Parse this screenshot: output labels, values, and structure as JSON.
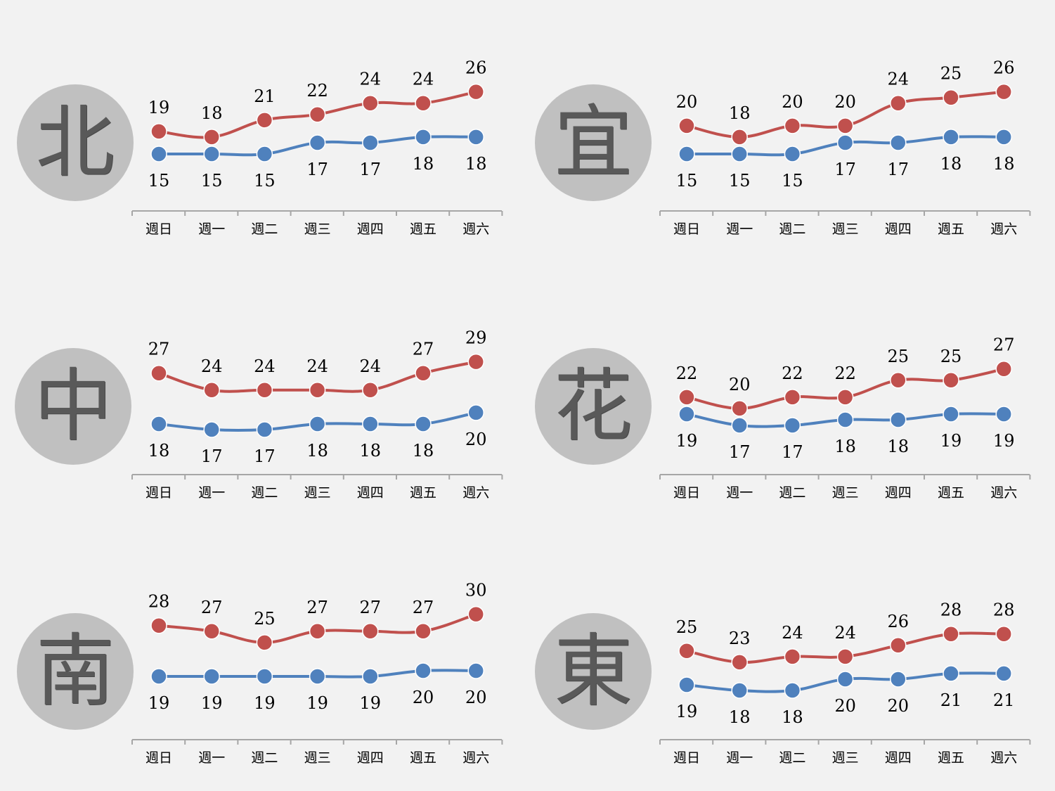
{
  "chart_data": [
    {
      "type": "line",
      "panel": "北",
      "categories": [
        "週日",
        "週一",
        "週二",
        "週三",
        "週四",
        "週五",
        "週六"
      ],
      "series": [
        {
          "values": [
            19,
            18,
            21,
            22,
            24,
            24,
            26
          ],
          "color": "#c0504d"
        },
        {
          "values": [
            15,
            15,
            15,
            17,
            17,
            18,
            18
          ],
          "color": "#4f81bd"
        }
      ]
    },
    {
      "type": "line",
      "panel": "宜",
      "categories": [
        "週日",
        "週一",
        "週二",
        "週三",
        "週四",
        "週五",
        "週六"
      ],
      "series": [
        {
          "values": [
            20,
            18,
            20,
            20,
            24,
            25,
            26
          ],
          "color": "#c0504d"
        },
        {
          "values": [
            15,
            15,
            15,
            17,
            17,
            18,
            18
          ],
          "color": "#4f81bd"
        }
      ]
    },
    {
      "type": "line",
      "panel": "中",
      "categories": [
        "週日",
        "週一",
        "週二",
        "週三",
        "週四",
        "週五",
        "週六"
      ],
      "series": [
        {
          "values": [
            27,
            24,
            24,
            24,
            24,
            27,
            29
          ],
          "color": "#c0504d"
        },
        {
          "values": [
            18,
            17,
            17,
            18,
            18,
            18,
            20
          ],
          "color": "#4f81bd"
        }
      ]
    },
    {
      "type": "line",
      "panel": "花",
      "categories": [
        "週日",
        "週一",
        "週二",
        "週三",
        "週四",
        "週五",
        "週六"
      ],
      "series": [
        {
          "values": [
            22,
            20,
            22,
            22,
            25,
            25,
            27
          ],
          "color": "#c0504d"
        },
        {
          "values": [
            19,
            17,
            17,
            18,
            18,
            19,
            19
          ],
          "color": "#4f81bd"
        }
      ]
    },
    {
      "type": "line",
      "panel": "南",
      "categories": [
        "週日",
        "週一",
        "週二",
        "週三",
        "週四",
        "週五",
        "週六"
      ],
      "series": [
        {
          "values": [
            28,
            27,
            25,
            27,
            27,
            27,
            30
          ],
          "color": "#c0504d"
        },
        {
          "values": [
            19,
            19,
            19,
            19,
            19,
            20,
            20
          ],
          "color": "#4f81bd"
        }
      ]
    },
    {
      "type": "line",
      "panel": "東",
      "categories": [
        "週日",
        "週一",
        "週二",
        "週三",
        "週四",
        "週五",
        "週六"
      ],
      "series": [
        {
          "values": [
            25,
            23,
            24,
            24,
            26,
            28,
            28
          ],
          "color": "#c0504d"
        },
        {
          "values": [
            19,
            18,
            18,
            20,
            20,
            21,
            21
          ],
          "color": "#4f81bd"
        }
      ]
    }
  ],
  "colors": {
    "background": "#f2f2f2",
    "circle": "#c0c0c0",
    "glyph": "#595959",
    "axis": "#a6a6a6"
  }
}
